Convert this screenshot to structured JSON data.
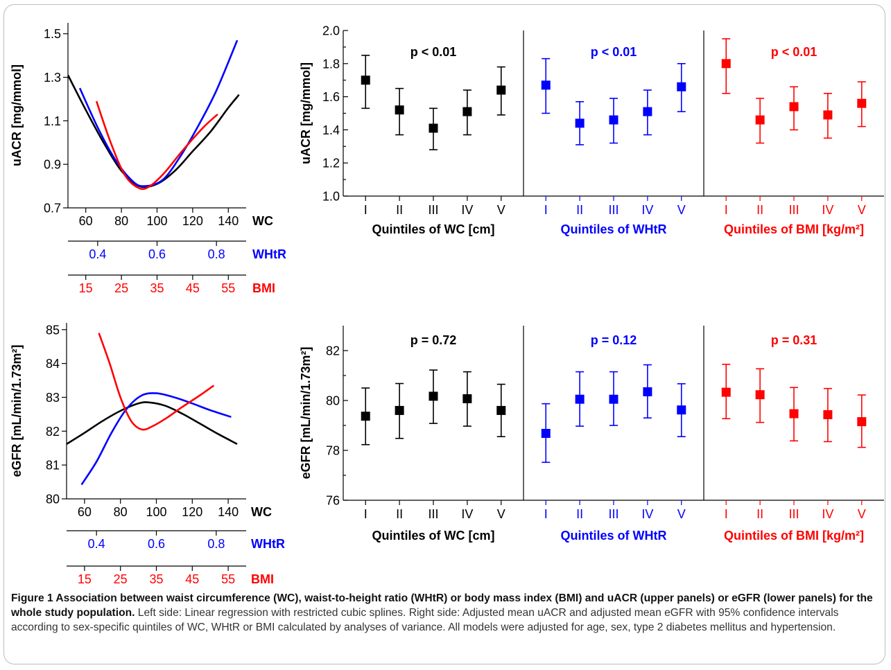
{
  "colors": {
    "wc": "#000000",
    "whtr": "#0000ff",
    "bmi": "#ff0000"
  },
  "chart_data": [
    {
      "id": "spline_uacr",
      "type": "line",
      "ylabel": "uACR [mg/mmol]",
      "ylim": [
        0.7,
        1.55
      ],
      "yticks": [
        0.7,
        0.9,
        1.1,
        1.3,
        1.5
      ],
      "ytick_labels": [
        "0.7",
        "0.9",
        "1.1",
        "1.3",
        "1.5"
      ],
      "axes": [
        {
          "label": "WC",
          "color": "#000000",
          "range": [
            50,
            150
          ],
          "ticks": [
            60,
            80,
            100,
            120,
            140
          ],
          "tick_labels": [
            "60",
            "80",
            "100",
            "120",
            "140"
          ]
        },
        {
          "label": "WHtR",
          "color": "#0000ff",
          "range": [
            0.3,
            0.9
          ],
          "ticks": [
            0.4,
            0.6,
            0.8
          ],
          "tick_labels": [
            "0.4",
            "0.6",
            "0.8"
          ]
        },
        {
          "label": "BMI",
          "color": "#ff0000",
          "range": [
            10,
            60
          ],
          "ticks": [
            15,
            25,
            35,
            45,
            55
          ],
          "tick_labels": [
            "15",
            "25",
            "35",
            "45",
            "55"
          ]
        }
      ],
      "series": [
        {
          "name": "WC",
          "axis": 0,
          "color": "#000000",
          "x": [
            50,
            60,
            70,
            80,
            90,
            100,
            110,
            120,
            130,
            140,
            146
          ],
          "y": [
            1.31,
            1.15,
            1.0,
            0.87,
            0.8,
            0.81,
            0.87,
            0.96,
            1.05,
            1.16,
            1.22
          ]
        },
        {
          "name": "WHtR",
          "axis": 1,
          "color": "#0000ff",
          "x": [
            0.34,
            0.4,
            0.46,
            0.52,
            0.56,
            0.62,
            0.68,
            0.74,
            0.8,
            0.87
          ],
          "y": [
            1.25,
            1.07,
            0.92,
            0.82,
            0.8,
            0.83,
            0.94,
            1.08,
            1.24,
            1.47
          ]
        },
        {
          "name": "BMI",
          "axis": 2,
          "color": "#ff0000",
          "x": [
            18,
            22,
            26,
            30,
            33,
            37,
            42,
            48,
            52
          ],
          "y": [
            1.19,
            1.0,
            0.85,
            0.79,
            0.8,
            0.86,
            0.96,
            1.07,
            1.13
          ]
        }
      ]
    },
    {
      "id": "quintiles_uacr",
      "type": "scatter",
      "ylabel": "uACR [mg/mmol]",
      "ylim": [
        1.0,
        2.0
      ],
      "yticks": [
        1.0,
        1.2,
        1.4,
        1.6,
        1.8,
        2.0
      ],
      "ytick_labels": [
        "1.0",
        "1.2",
        "1.4",
        "1.6",
        "1.8",
        "2.0"
      ],
      "categories": [
        "I",
        "II",
        "III",
        "IV",
        "V"
      ],
      "groups": [
        {
          "name": "Quintiles of WC [cm]",
          "p_value": "p < 0.01",
          "color": "#000000",
          "mean": [
            1.7,
            1.52,
            1.41,
            1.51,
            1.64
          ],
          "lower": [
            1.53,
            1.37,
            1.28,
            1.37,
            1.49
          ],
          "upper": [
            1.85,
            1.65,
            1.53,
            1.64,
            1.78
          ]
        },
        {
          "name": "Quintiles of WHtR",
          "p_value": "p < 0.01",
          "color": "#0000ff",
          "mean": [
            1.67,
            1.44,
            1.46,
            1.51,
            1.66
          ],
          "lower": [
            1.5,
            1.31,
            1.32,
            1.37,
            1.51
          ],
          "upper": [
            1.83,
            1.57,
            1.59,
            1.64,
            1.8
          ]
        },
        {
          "name": "Quintiles of BMI [kg/m²]",
          "p_value": "p < 0.01",
          "color": "#ff0000",
          "mean": [
            1.8,
            1.46,
            1.54,
            1.49,
            1.56
          ],
          "lower": [
            1.62,
            1.32,
            1.4,
            1.35,
            1.42
          ],
          "upper": [
            1.95,
            1.59,
            1.66,
            1.62,
            1.69
          ]
        }
      ]
    },
    {
      "id": "spline_egfr",
      "type": "line",
      "ylabel": "eGFR [mL/min/1.73m²]",
      "ylim": [
        80,
        85.2
      ],
      "yticks": [
        80,
        81,
        82,
        83,
        84,
        85
      ],
      "ytick_labels": [
        "80",
        "81",
        "82",
        "83",
        "84",
        "85"
      ],
      "axes": [
        {
          "label": "WC",
          "color": "#000000",
          "range": [
            50,
            150
          ],
          "ticks": [
            60,
            80,
            100,
            120,
            140
          ],
          "tick_labels": [
            "60",
            "80",
            "100",
            "120",
            "140"
          ]
        },
        {
          "label": "WHtR",
          "color": "#0000ff",
          "range": [
            0.3,
            0.9
          ],
          "ticks": [
            0.4,
            0.6,
            0.8
          ],
          "tick_labels": [
            "0.4",
            "0.6",
            "0.8"
          ]
        },
        {
          "label": "BMI",
          "color": "#ff0000",
          "range": [
            10,
            60
          ],
          "ticks": [
            15,
            25,
            35,
            45,
            55
          ],
          "tick_labels": [
            "15",
            "25",
            "35",
            "45",
            "55"
          ]
        }
      ],
      "series": [
        {
          "name": "WC",
          "axis": 0,
          "color": "#000000",
          "x": [
            50,
            60,
            70,
            80,
            90,
            96,
            105,
            115,
            125,
            135,
            145
          ],
          "y": [
            81.62,
            81.95,
            82.3,
            82.6,
            82.82,
            82.85,
            82.75,
            82.5,
            82.2,
            81.9,
            81.62
          ]
        },
        {
          "name": "WHtR",
          "axis": 1,
          "color": "#0000ff",
          "x": [
            0.35,
            0.4,
            0.45,
            0.5,
            0.55,
            0.6,
            0.66,
            0.72,
            0.78,
            0.85
          ],
          "y": [
            80.42,
            81.1,
            81.95,
            82.65,
            83.05,
            83.12,
            83.0,
            82.82,
            82.62,
            82.42
          ]
        },
        {
          "name": "BMI",
          "axis": 2,
          "color": "#ff0000",
          "x": [
            19,
            22,
            25,
            28,
            31,
            34,
            38,
            42,
            47,
            51
          ],
          "y": [
            84.9,
            84.0,
            83.0,
            82.3,
            82.05,
            82.15,
            82.4,
            82.7,
            83.05,
            83.35
          ]
        }
      ]
    },
    {
      "id": "quintiles_egfr",
      "type": "scatter",
      "ylabel": "eGFR [mL/min/1.73m²]",
      "ylim": [
        76,
        83
      ],
      "yticks": [
        76,
        78,
        80,
        82
      ],
      "ytick_labels": [
        "76",
        "78",
        "80",
        "82"
      ],
      "categories": [
        "I",
        "II",
        "III",
        "IV",
        "V"
      ],
      "groups": [
        {
          "name": "Quintiles of WC [cm]",
          "p_value": "p = 0.72",
          "color": "#000000",
          "mean": [
            79.37,
            79.6,
            80.17,
            80.07,
            79.6
          ],
          "lower": [
            78.23,
            78.48,
            79.08,
            78.97,
            78.55
          ],
          "upper": [
            80.5,
            80.68,
            81.22,
            81.15,
            80.65
          ]
        },
        {
          "name": "Quintiles of WHtR",
          "p_value": "p = 0.12",
          "color": "#0000ff",
          "mean": [
            78.68,
            80.05,
            80.05,
            80.35,
            79.62
          ],
          "lower": [
            77.52,
            78.97,
            79.0,
            79.3,
            78.55
          ],
          "upper": [
            79.87,
            81.15,
            81.15,
            81.43,
            80.67
          ]
        },
        {
          "name": "Quintiles of BMI [kg/m²]",
          "p_value": "p = 0.31",
          "color": "#ff0000",
          "mean": [
            80.33,
            80.23,
            79.47,
            79.43,
            79.15
          ],
          "lower": [
            79.27,
            79.12,
            78.38,
            78.35,
            78.12
          ],
          "upper": [
            81.45,
            81.27,
            80.52,
            80.48,
            80.22
          ]
        }
      ]
    }
  ],
  "caption": {
    "bold": "Figure 1 Association between waist circumference (WC), waist-to-height ratio (WHtR) or body mass index (BMI) and uACR (upper panels) or eGFR (lower panels) for the whole study population.",
    "text": "Left side: Linear regression with restricted cubic splines. Right side: Adjusted mean uACR and adjusted mean eGFR with 95% confidence intervals according to sex-specific quintiles of WC, WHtR or BMI calculated by analyses of variance. All models were adjusted for age, sex, type 2 diabetes mellitus and hypertension."
  }
}
